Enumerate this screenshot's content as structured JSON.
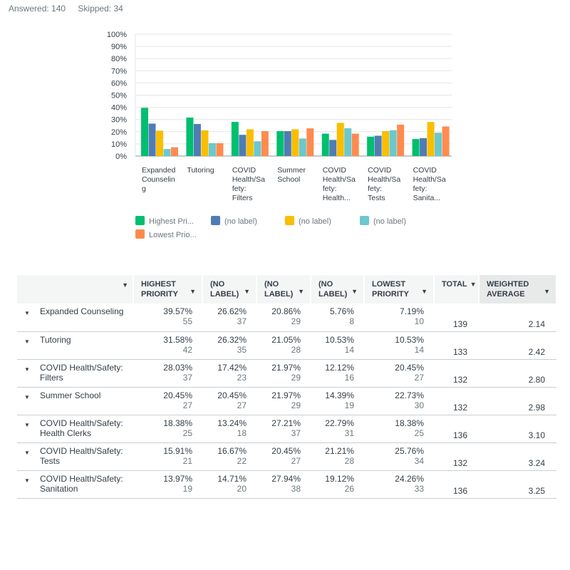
{
  "summary": {
    "answered": "Answered: 140",
    "skipped": "Skipped: 34"
  },
  "colors": {
    "s0": "#00bf6f",
    "s1": "#507cb6",
    "s2": "#f9be00",
    "s3": "#6bc8cd",
    "s4": "#ff8b4f"
  },
  "chart_data": {
    "type": "bar",
    "categories": [
      [
        "Expanded",
        "Counselin",
        "g"
      ],
      [
        "Tutoring"
      ],
      [
        "COVID",
        "Health/Sa",
        "fety:",
        "Filters"
      ],
      [
        "Summer",
        "School"
      ],
      [
        "COVID",
        "Health/Sa",
        "fety:",
        "Health..."
      ],
      [
        "COVID",
        "Health/Sa",
        "fety:",
        "Tests"
      ],
      [
        "COVID",
        "Health/Sa",
        "fety:",
        "Sanita..."
      ]
    ],
    "yticks": [
      "0%",
      "10%",
      "20%",
      "30%",
      "40%",
      "50%",
      "60%",
      "70%",
      "80%",
      "90%",
      "100%"
    ],
    "ylim": [
      0,
      100
    ],
    "series": [
      {
        "name": "Highest Pri...",
        "values": [
          39.57,
          31.58,
          28.03,
          20.45,
          18.38,
          15.91,
          13.97
        ]
      },
      {
        "name": "(no label)",
        "values": [
          26.62,
          26.32,
          17.42,
          20.45,
          13.24,
          16.67,
          14.71
        ]
      },
      {
        "name": "(no label)",
        "values": [
          20.86,
          21.05,
          21.97,
          21.97,
          27.21,
          20.45,
          27.94
        ]
      },
      {
        "name": "(no label)",
        "values": [
          5.76,
          10.53,
          12.12,
          14.39,
          22.79,
          21.21,
          19.12
        ]
      },
      {
        "name": "Lowest Prio...",
        "values": [
          7.19,
          10.53,
          20.45,
          22.73,
          18.38,
          25.76,
          24.26
        ]
      }
    ],
    "legend": "bottom"
  },
  "table": {
    "headers": [
      {
        "lines": [
          "HIGHEST",
          "PRIORITY"
        ]
      },
      {
        "lines": [
          "(NO",
          "LABEL)"
        ]
      },
      {
        "lines": [
          "(NO",
          "LABEL)"
        ]
      },
      {
        "lines": [
          "(NO",
          "LABEL)"
        ]
      },
      {
        "lines": [
          "LOWEST",
          "PRIORITY"
        ]
      },
      {
        "lines": [
          "TOTAL"
        ]
      },
      {
        "lines": [
          "WEIGHTED",
          "AVERAGE"
        ]
      }
    ],
    "rows": [
      {
        "label": [
          "Expanded Counseling"
        ],
        "cells": [
          [
            "39.57%",
            "55"
          ],
          [
            "26.62%",
            "37"
          ],
          [
            "20.86%",
            "29"
          ],
          [
            "5.76%",
            "8"
          ],
          [
            "7.19%",
            "10"
          ]
        ],
        "total": "139",
        "wavg": "2.14"
      },
      {
        "label": [
          "Tutoring"
        ],
        "cells": [
          [
            "31.58%",
            "42"
          ],
          [
            "26.32%",
            "35"
          ],
          [
            "21.05%",
            "28"
          ],
          [
            "10.53%",
            "14"
          ],
          [
            "10.53%",
            "14"
          ]
        ],
        "total": "133",
        "wavg": "2.42"
      },
      {
        "label": [
          "COVID Health/Safety:",
          "Filters"
        ],
        "cells": [
          [
            "28.03%",
            "37"
          ],
          [
            "17.42%",
            "23"
          ],
          [
            "21.97%",
            "29"
          ],
          [
            "12.12%",
            "16"
          ],
          [
            "20.45%",
            "27"
          ]
        ],
        "total": "132",
        "wavg": "2.80"
      },
      {
        "label": [
          "Summer School"
        ],
        "cells": [
          [
            "20.45%",
            "27"
          ],
          [
            "20.45%",
            "27"
          ],
          [
            "21.97%",
            "29"
          ],
          [
            "14.39%",
            "19"
          ],
          [
            "22.73%",
            "30"
          ]
        ],
        "total": "132",
        "wavg": "2.98"
      },
      {
        "label": [
          "COVID Health/Safety:",
          "Health Clerks"
        ],
        "cells": [
          [
            "18.38%",
            "25"
          ],
          [
            "13.24%",
            "18"
          ],
          [
            "27.21%",
            "37"
          ],
          [
            "22.79%",
            "31"
          ],
          [
            "18.38%",
            "25"
          ]
        ],
        "total": "136",
        "wavg": "3.10"
      },
      {
        "label": [
          "COVID Health/Safety:",
          "Tests"
        ],
        "cells": [
          [
            "15.91%",
            "21"
          ],
          [
            "16.67%",
            "22"
          ],
          [
            "20.45%",
            "27"
          ],
          [
            "21.21%",
            "28"
          ],
          [
            "25.76%",
            "34"
          ]
        ],
        "total": "132",
        "wavg": "3.24"
      },
      {
        "label": [
          "COVID Health/Safety:",
          "Sanitation"
        ],
        "cells": [
          [
            "13.97%",
            "19"
          ],
          [
            "14.71%",
            "20"
          ],
          [
            "27.94%",
            "38"
          ],
          [
            "19.12%",
            "26"
          ],
          [
            "24.26%",
            "33"
          ]
        ],
        "total": "136",
        "wavg": "3.25"
      }
    ]
  }
}
